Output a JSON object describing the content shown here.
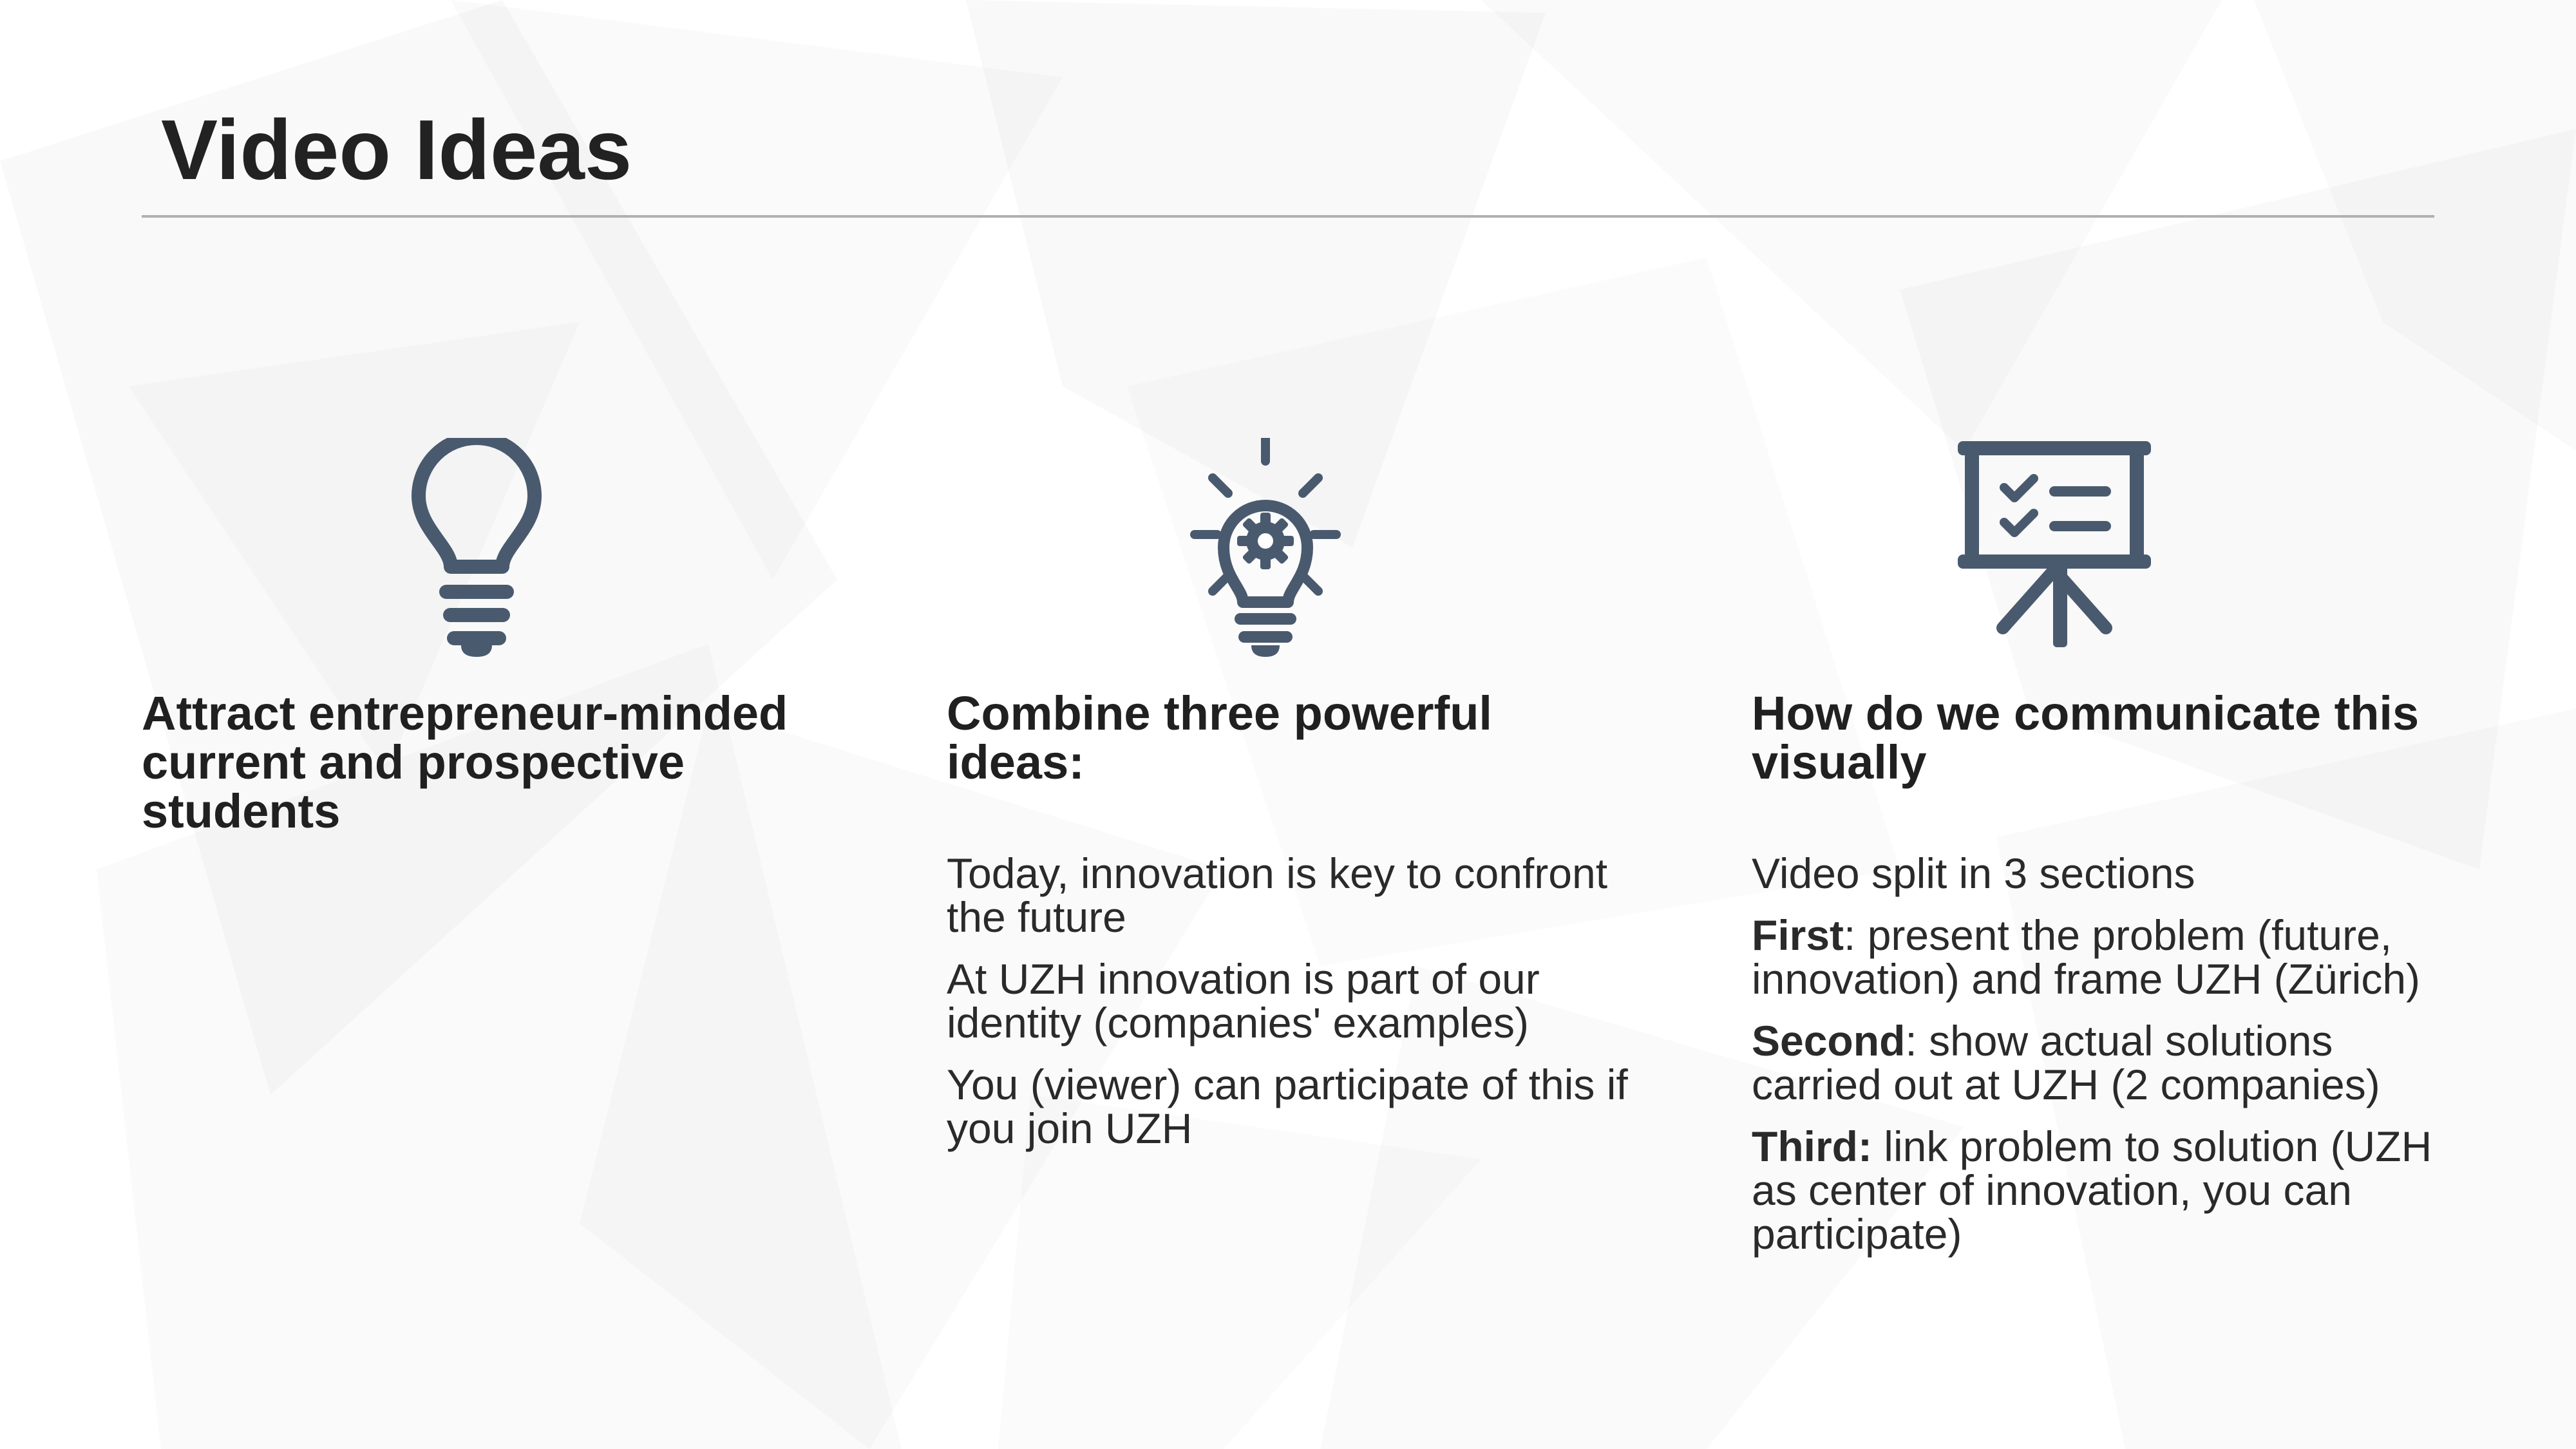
{
  "title": "Video Ideas",
  "accent_color": "#4a5a6e",
  "columns": [
    {
      "icon": "lightbulb-icon",
      "heading": "Attract entrepreneur-minded current and prospective students",
      "items": []
    },
    {
      "icon": "idea-gear-icon",
      "heading": "Combine three powerful ideas:",
      "items": [
        {
          "bold": "",
          "text": "Today, innovation is key to confront the future"
        },
        {
          "bold": "",
          "text": "At UZH innovation is part of our identity (companies' examples)"
        },
        {
          "bold": "",
          "text": "You (viewer) can participate of this if you join UZH"
        }
      ]
    },
    {
      "icon": "presentation-board-icon",
      "heading": "How do we communicate this visually",
      "items": [
        {
          "bold": "",
          "text": "Video split in 3 sections"
        },
        {
          "bold": "First",
          "text": ": present the problem (future, innovation) and frame UZH (Zürich)"
        },
        {
          "bold": "Second",
          "text": ": show actual solutions carried out at UZH (2 companies)"
        },
        {
          "bold": "Third:",
          "text": " link problem to solution (UZH as center of innovation, you can participate)"
        }
      ]
    }
  ]
}
